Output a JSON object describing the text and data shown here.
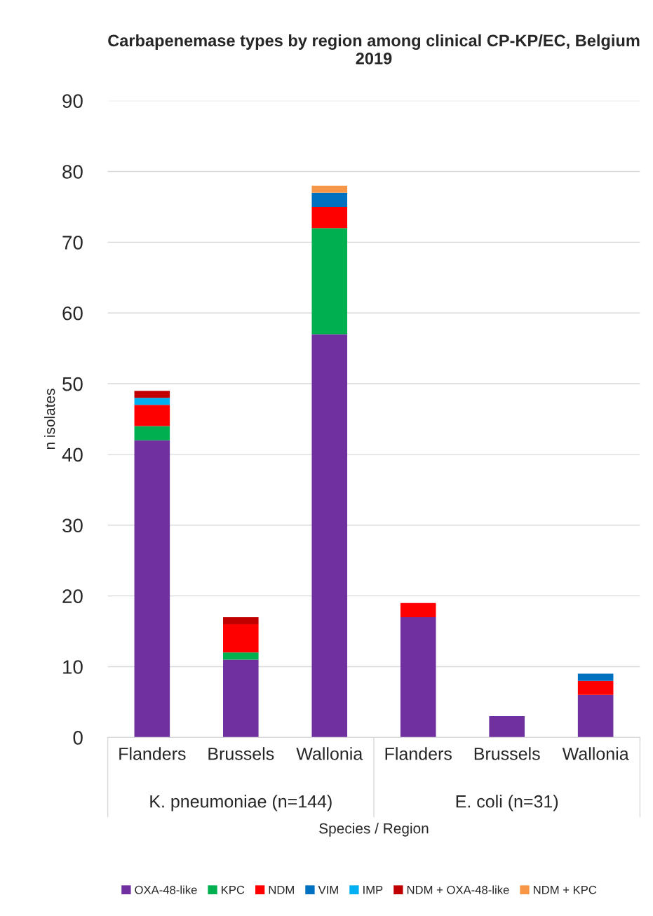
{
  "chart_data": {
    "type": "bar",
    "stacked": true,
    "title": "Carbapenemase types by region among clinical CP-KP/EC, Belgium 2019",
    "xlabel": "Species / Region",
    "ylabel": "n isolates",
    "categories": [
      "Flanders",
      "Brussels",
      "Wallonia",
      "Flanders",
      "Brussels",
      "Wallonia"
    ],
    "annotations": [
      "K. pneumoniae (n=144)",
      "E. coli (n=31)"
    ],
    "series": [
      {
        "name": "OXA-48-like",
        "color": "#7030a0",
        "values": [
          42,
          11,
          57,
          17,
          3,
          6
        ]
      },
      {
        "name": "KPC",
        "color": "#00b050",
        "values": [
          2,
          1,
          15,
          0,
          0,
          0
        ]
      },
      {
        "name": "NDM",
        "color": "#ff0000",
        "values": [
          3,
          4,
          3,
          2,
          0,
          2
        ]
      },
      {
        "name": "VIM",
        "color": "#0070c0",
        "values": [
          0,
          0,
          2,
          0,
          0,
          1
        ]
      },
      {
        "name": "IMP",
        "color": "#00b0f0",
        "values": [
          1,
          0,
          0,
          0,
          0,
          0
        ]
      },
      {
        "name": "NDM + OXA-48-like",
        "color": "#c00000",
        "values": [
          1,
          1,
          0,
          0,
          0,
          0
        ]
      },
      {
        "name": "NDM + KPC",
        "color": "#f79646",
        "values": [
          0,
          0,
          1,
          0,
          0,
          0
        ]
      }
    ],
    "ylim": [
      0,
      90
    ],
    "yticks": [
      0,
      10,
      20,
      30,
      40,
      50,
      60,
      70,
      80,
      90
    ],
    "grid": "y",
    "legend": "bottom"
  }
}
